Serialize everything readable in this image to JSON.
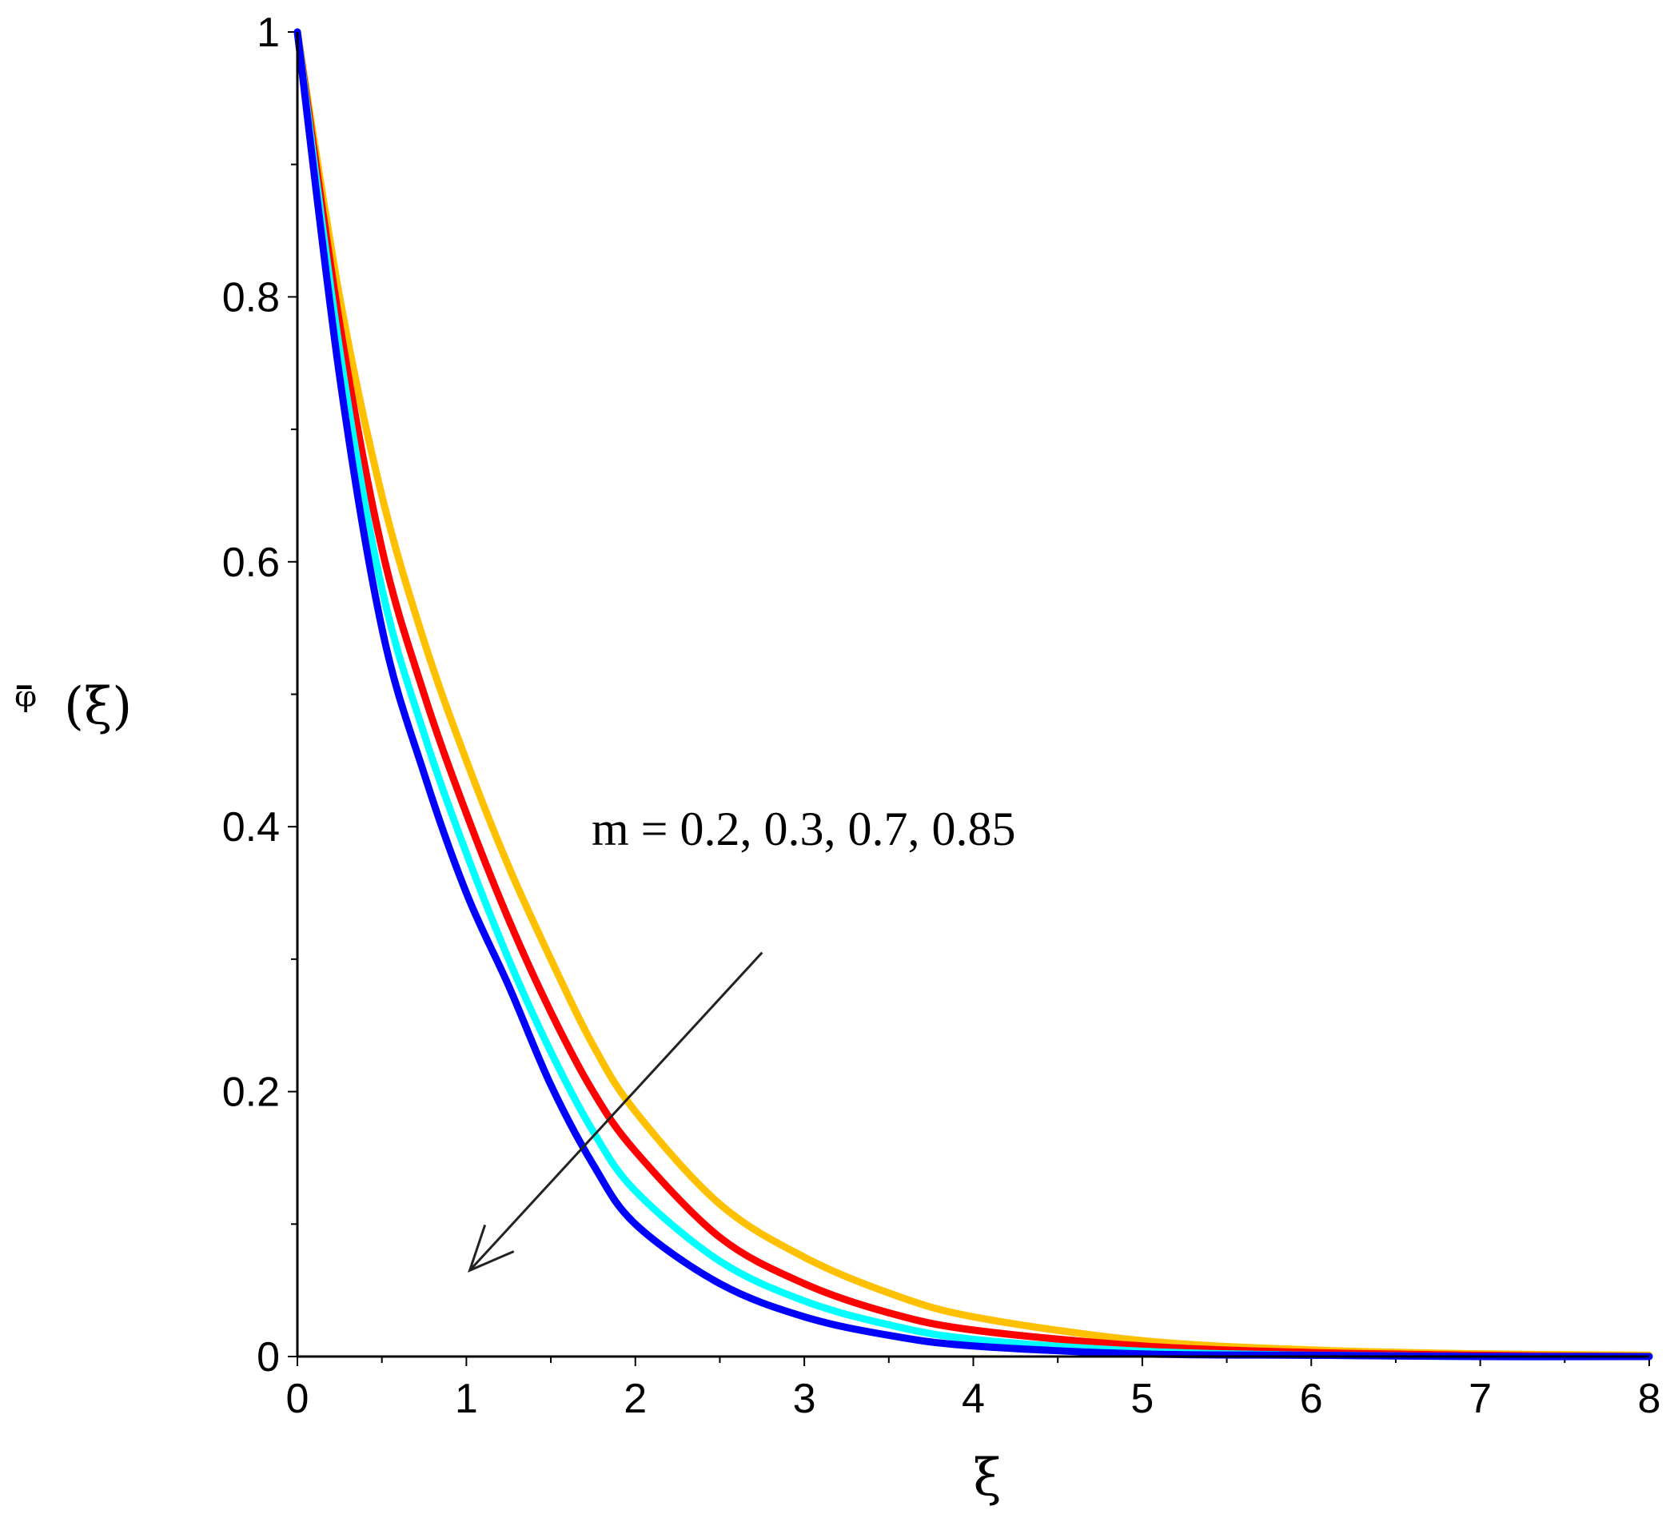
{
  "chart_data": {
    "type": "line",
    "xlabel": "ξ",
    "ylabel_glyph": "ᵠ̄",
    "ylabel_arg": "(ξ)",
    "xlim": [
      0,
      8
    ],
    "ylim": [
      0,
      1
    ],
    "x_ticks": [
      "0",
      "1",
      "2",
      "3",
      "4",
      "5",
      "6",
      "7",
      "8"
    ],
    "y_ticks": [
      "0",
      "0.2",
      "0.4",
      "0.6",
      "0.8",
      "1"
    ],
    "annotation": "m = 0.2, 0.3, 0.7, 0.85",
    "arrow": {
      "from": [
        2.75,
        0.305
      ],
      "to": [
        1.02,
        0.065
      ]
    },
    "series": [
      {
        "color": "#ffc000",
        "x": [
          0,
          0.25,
          0.5,
          0.75,
          1,
          1.25,
          1.5,
          1.75,
          2,
          2.5,
          3,
          3.5,
          4,
          5,
          6,
          7,
          8
        ],
        "y": [
          1,
          0.8,
          0.65,
          0.54,
          0.45,
          0.37,
          0.3,
          0.235,
          0.185,
          0.115,
          0.075,
          0.048,
          0.03,
          0.012,
          0.005,
          0.002,
          0.001
        ]
      },
      {
        "color": "#ff0000",
        "x": [
          0,
          0.25,
          0.5,
          0.75,
          1,
          1.25,
          1.5,
          1.75,
          2,
          2.5,
          3,
          3.5,
          4,
          5,
          6,
          7,
          8
        ],
        "y": [
          1,
          0.78,
          0.61,
          0.5,
          0.41,
          0.33,
          0.26,
          0.2,
          0.155,
          0.09,
          0.055,
          0.033,
          0.02,
          0.008,
          0.003,
          0.001,
          0
        ]
      },
      {
        "color": "#00ffff",
        "x": [
          0,
          0.25,
          0.5,
          0.75,
          1,
          1.25,
          1.5,
          1.75,
          2,
          2.5,
          3,
          3.5,
          4,
          5,
          6,
          7,
          8
        ],
        "y": [
          1,
          0.76,
          0.58,
          0.47,
          0.38,
          0.3,
          0.23,
          0.17,
          0.125,
          0.072,
          0.042,
          0.024,
          0.013,
          0.004,
          0.001,
          0,
          0
        ]
      },
      {
        "color": "#0000ff",
        "x": [
          0,
          0.25,
          0.5,
          0.75,
          1,
          1.25,
          1.5,
          1.75,
          2,
          2.5,
          3,
          3.5,
          4,
          5,
          6,
          7,
          8
        ],
        "y": [
          1,
          0.74,
          0.55,
          0.44,
          0.35,
          0.28,
          0.205,
          0.145,
          0.1,
          0.055,
          0.03,
          0.016,
          0.008,
          0.002,
          0.001,
          0,
          0
        ]
      }
    ]
  }
}
